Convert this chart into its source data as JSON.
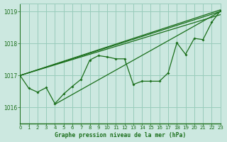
{
  "title": "Graphe pression niveau de la mer (hPa)",
  "bg_color": "#cce8e0",
  "grid_color": "#99ccbb",
  "line_color": "#1a6e1a",
  "xlim": [
    0,
    23
  ],
  "ylim": [
    1015.5,
    1019.25
  ],
  "yticks": [
    1016,
    1017,
    1018,
    1019
  ],
  "xticks": [
    0,
    1,
    2,
    3,
    4,
    5,
    6,
    7,
    8,
    9,
    10,
    11,
    12,
    13,
    14,
    15,
    16,
    17,
    18,
    19,
    20,
    21,
    22,
    23
  ],
  "straight_lines": [
    [
      [
        0,
        1017.0
      ],
      [
        23,
        1018.9
      ]
    ],
    [
      [
        0,
        1017.0
      ],
      [
        23,
        1019.0
      ]
    ],
    [
      [
        0,
        1017.0
      ],
      [
        23,
        1019.05
      ]
    ],
    [
      [
        4,
        1016.1
      ],
      [
        23,
        1019.0
      ]
    ]
  ],
  "wavy_series": [
    [
      1017.0,
      1016.6,
      1016.48,
      1016.62,
      1016.12,
      1016.42,
      1016.66,
      1016.88,
      1017.48,
      1017.62,
      1017.58,
      1017.52,
      1017.52,
      1016.72,
      1016.82,
      1016.82,
      1016.82,
      1017.08,
      1018.02,
      1017.66,
      1018.16,
      1018.12,
      1018.66,
      1019.02
    ]
  ]
}
